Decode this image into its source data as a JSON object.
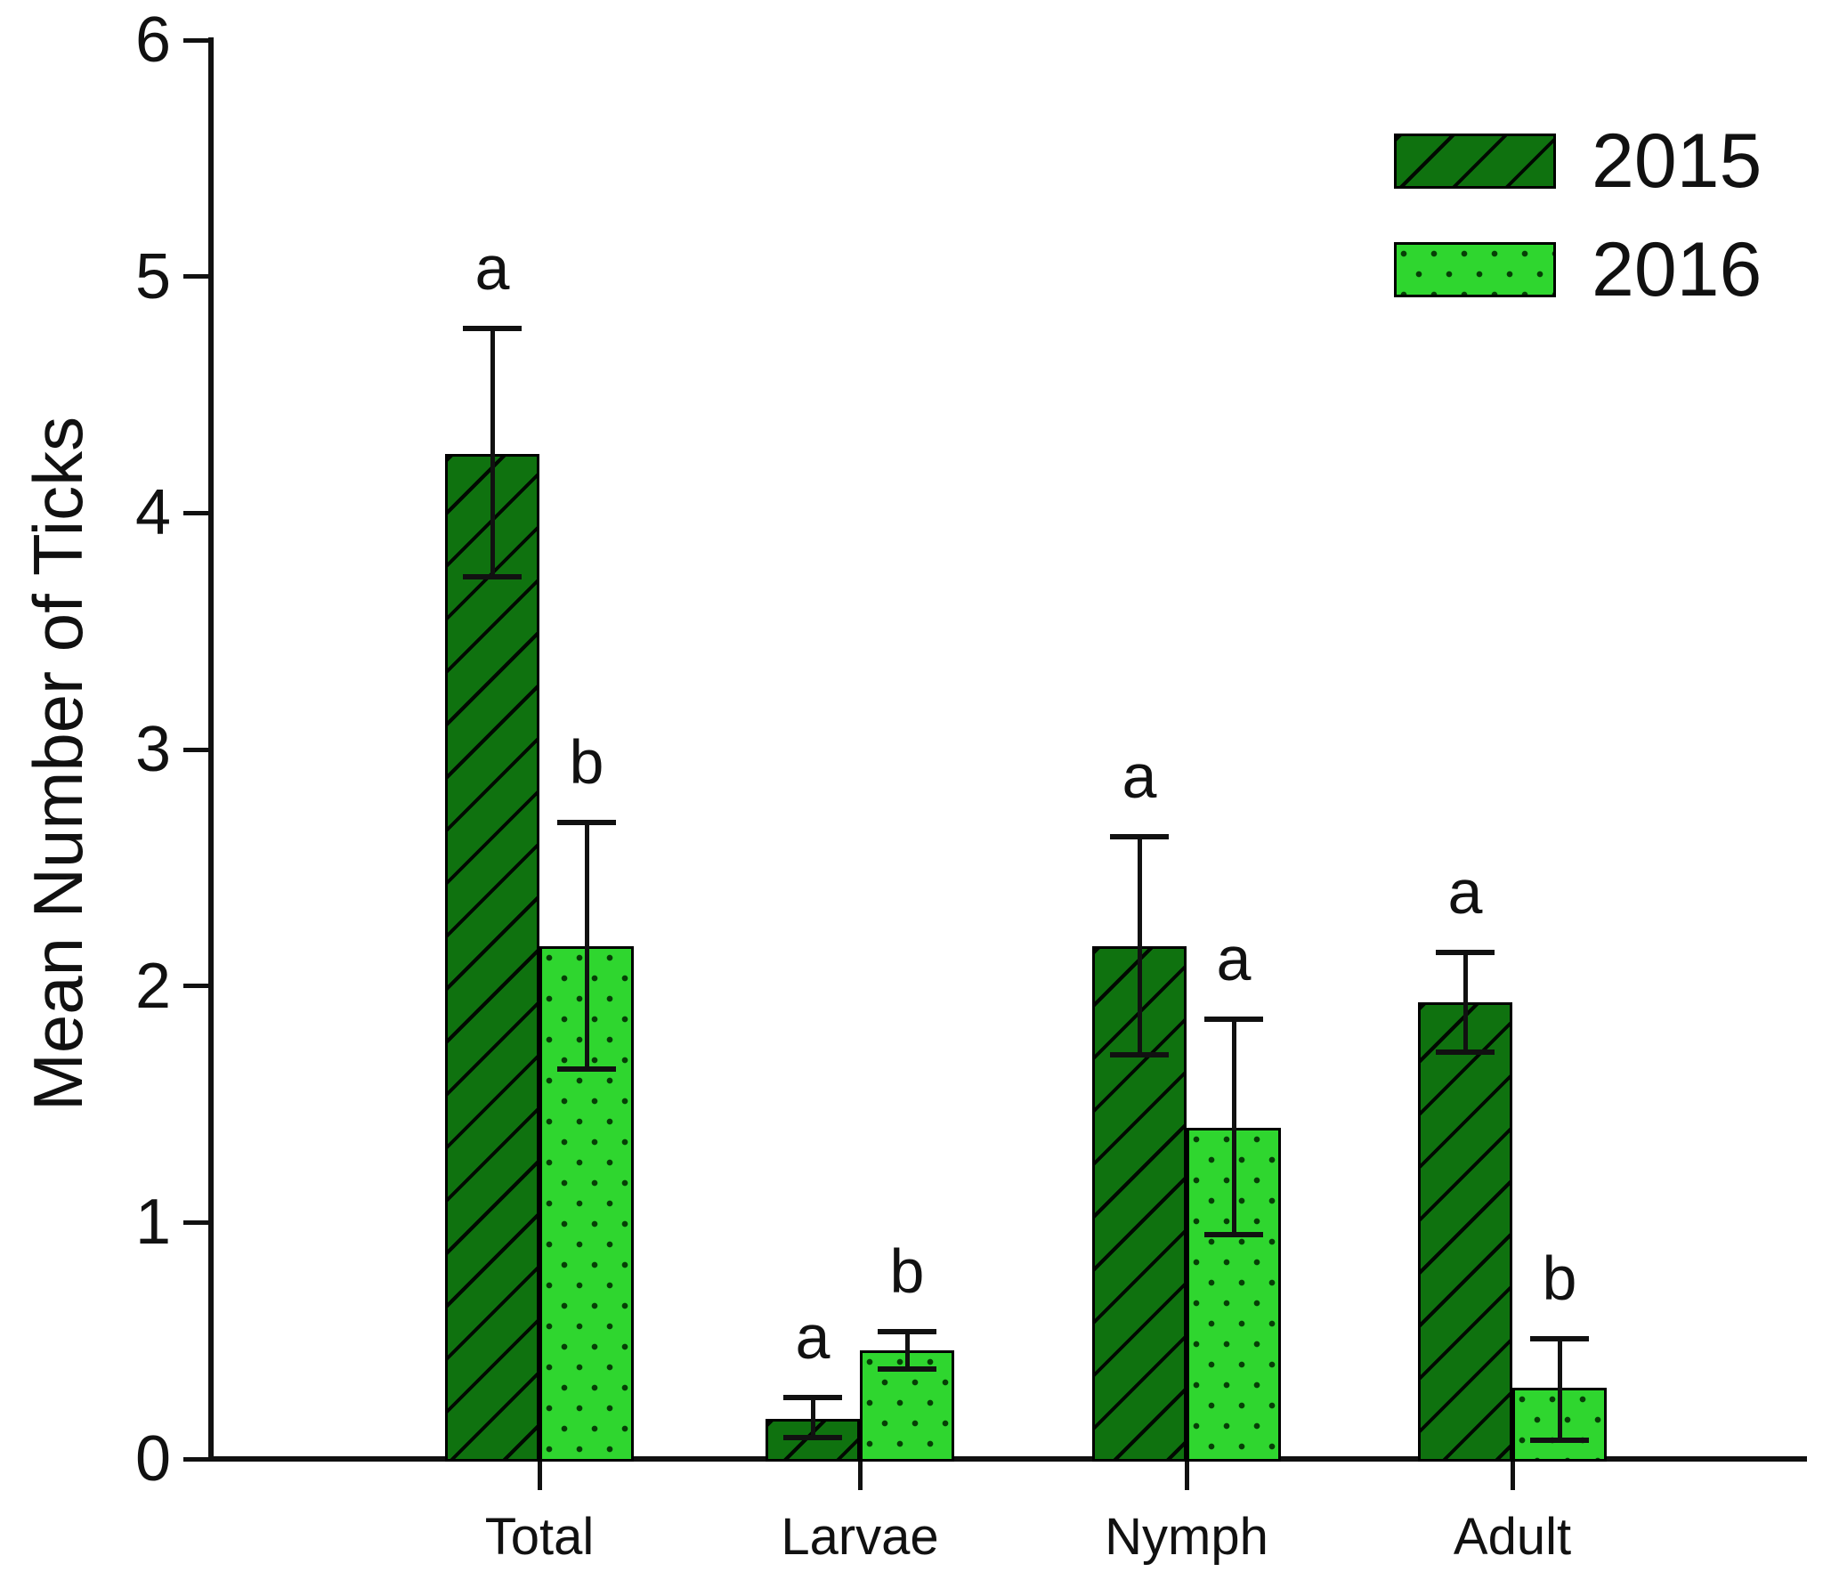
{
  "chart_data": {
    "type": "bar",
    "title": "",
    "xlabel": "",
    "ylabel": "Mean Number of Ticks",
    "ylim": [
      0,
      6
    ],
    "ytick_step": 1,
    "ytick_labels": [
      "0",
      "1",
      "2",
      "3",
      "4",
      "5",
      "6"
    ],
    "grid": false,
    "legend_position": "top-right",
    "categories": [
      "Total",
      "Larvae",
      "Nymph",
      "Adult"
    ],
    "series": [
      {
        "name": "2015",
        "pattern": "diagonal-hatch",
        "fill": "#0f720f",
        "values": [
          4.25,
          0.17,
          2.17,
          1.93
        ],
        "error_up": [
          0.53,
          0.09,
          0.46,
          0.21
        ],
        "error_down": [
          0.52,
          0.08,
          0.46,
          0.21
        ],
        "sig_letters": [
          "a",
          "a",
          "a",
          "a"
        ]
      },
      {
        "name": "2016",
        "pattern": "dots",
        "fill": "#2fd62f",
        "values": [
          2.17,
          0.46,
          1.4,
          0.3
        ],
        "error_up": [
          0.52,
          0.08,
          0.46,
          0.21
        ],
        "error_down": [
          0.52,
          0.08,
          0.45,
          0.22
        ],
        "sig_letters": [
          "b",
          "b",
          "a",
          "b"
        ]
      }
    ],
    "colors": {
      "bar_2015": "#0f720f",
      "bar_2016": "#2fd62f",
      "dot_color": "#063f06",
      "outline": "#000000",
      "axis_and_text": "#111111"
    }
  }
}
